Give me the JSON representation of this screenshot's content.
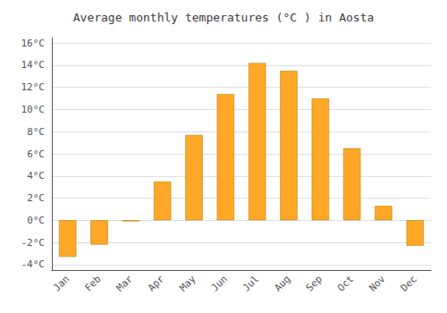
{
  "chart_data": {
    "type": "bar",
    "title": "Average monthly temperatures (°C ) in Aosta",
    "categories": [
      "Jan",
      "Feb",
      "Mar",
      "Apr",
      "May",
      "Jun",
      "Jul",
      "Aug",
      "Sep",
      "Oct",
      "Nov",
      "Dec"
    ],
    "values": [
      -3.3,
      -2.2,
      -0.1,
      3.5,
      7.7,
      11.4,
      14.2,
      13.5,
      11.0,
      6.5,
      1.3,
      -2.3
    ],
    "color": "#FFA726",
    "ylim": [
      -4.5,
      16.5
    ],
    "yticks": [
      {
        "value": -4,
        "label": "-4°C"
      },
      {
        "value": -2,
        "label": "-2°C"
      },
      {
        "value": 0,
        "label": "0°C"
      },
      {
        "value": 2,
        "label": "2°C"
      },
      {
        "value": 4,
        "label": "4°C"
      },
      {
        "value": 6,
        "label": "6°C"
      },
      {
        "value": 8,
        "label": "8°C"
      },
      {
        "value": 10,
        "label": "10°C"
      },
      {
        "value": 12,
        "label": "12°C"
      },
      {
        "value": 14,
        "label": "14°C"
      },
      {
        "value": 16,
        "label": "16°C"
      }
    ],
    "grid": true
  }
}
